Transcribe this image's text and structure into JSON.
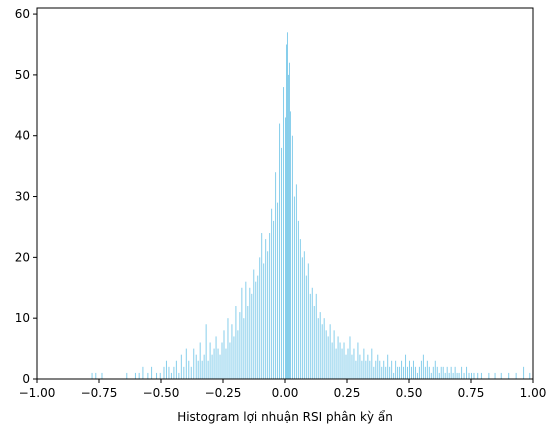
{
  "chart_data": {
    "type": "bar",
    "title": "",
    "xlabel": "Histogram lợi nhuận RSI phân kỳ ẩn",
    "ylabel": "",
    "xlim": [
      -1.0,
      1.0
    ],
    "ylim": [
      0,
      61
    ],
    "grid": false,
    "bar_color": "#87CEEB",
    "x_ticks": [
      "−1.00",
      "−0.75",
      "−0.50",
      "−0.25",
      "0.00",
      "0.25",
      "0.50",
      "0.75",
      "1.00"
    ],
    "x_tick_values": [
      -1.0,
      -0.75,
      -0.5,
      -0.25,
      0.0,
      0.25,
      0.5,
      0.75,
      1.0
    ],
    "y_ticks": [
      "0",
      "10",
      "20",
      "30",
      "40",
      "50",
      "60"
    ],
    "y_tick_values": [
      0,
      10,
      20,
      30,
      40,
      50,
      60
    ],
    "bin_width": 0.004,
    "bins": [
      [
        -0.78,
        1
      ],
      [
        -0.765,
        1
      ],
      [
        -0.74,
        1
      ],
      [
        -0.64,
        1
      ],
      [
        -0.605,
        1
      ],
      [
        -0.59,
        1
      ],
      [
        -0.575,
        2
      ],
      [
        -0.555,
        1
      ],
      [
        -0.54,
        2
      ],
      [
        -0.52,
        1
      ],
      [
        -0.505,
        1
      ],
      [
        -0.49,
        2
      ],
      [
        -0.48,
        3
      ],
      [
        -0.47,
        2
      ],
      [
        -0.46,
        1
      ],
      [
        -0.45,
        2
      ],
      [
        -0.44,
        3
      ],
      [
        -0.43,
        1
      ],
      [
        -0.42,
        4
      ],
      [
        -0.41,
        2
      ],
      [
        -0.4,
        5
      ],
      [
        -0.39,
        3
      ],
      [
        -0.38,
        2
      ],
      [
        -0.37,
        5
      ],
      [
        -0.36,
        4
      ],
      [
        -0.352,
        3
      ],
      [
        -0.344,
        6
      ],
      [
        -0.336,
        3
      ],
      [
        -0.328,
        4
      ],
      [
        -0.32,
        9
      ],
      [
        -0.312,
        3
      ],
      [
        -0.304,
        6
      ],
      [
        -0.296,
        4
      ],
      [
        -0.288,
        5
      ],
      [
        -0.28,
        7
      ],
      [
        -0.272,
        5
      ],
      [
        -0.264,
        4
      ],
      [
        -0.256,
        6
      ],
      [
        -0.248,
        8
      ],
      [
        -0.24,
        5
      ],
      [
        -0.232,
        10
      ],
      [
        -0.224,
        6
      ],
      [
        -0.216,
        9
      ],
      [
        -0.208,
        7
      ],
      [
        -0.2,
        12
      ],
      [
        -0.192,
        8
      ],
      [
        -0.184,
        11
      ],
      [
        -0.176,
        15
      ],
      [
        -0.168,
        10
      ],
      [
        -0.16,
        16
      ],
      [
        -0.152,
        12
      ],
      [
        -0.144,
        15
      ],
      [
        -0.136,
        14
      ],
      [
        -0.128,
        18
      ],
      [
        -0.12,
        16
      ],
      [
        -0.112,
        17
      ],
      [
        -0.104,
        20
      ],
      [
        -0.096,
        24
      ],
      [
        -0.088,
        19
      ],
      [
        -0.08,
        23
      ],
      [
        -0.072,
        21
      ],
      [
        -0.064,
        24
      ],
      [
        -0.056,
        28
      ],
      [
        -0.048,
        26
      ],
      [
        -0.04,
        34
      ],
      [
        -0.032,
        29
      ],
      [
        -0.024,
        42
      ],
      [
        -0.016,
        38
      ],
      [
        -0.008,
        48
      ],
      [
        0.0,
        43
      ],
      [
        0.004,
        55
      ],
      [
        0.008,
        57
      ],
      [
        0.012,
        50
      ],
      [
        0.016,
        52
      ],
      [
        0.02,
        44
      ],
      [
        0.028,
        40
      ],
      [
        0.036,
        30
      ],
      [
        0.044,
        32
      ],
      [
        0.052,
        26
      ],
      [
        0.06,
        23
      ],
      [
        0.068,
        20
      ],
      [
        0.076,
        21
      ],
      [
        0.084,
        17
      ],
      [
        0.092,
        19
      ],
      [
        0.1,
        14
      ],
      [
        0.108,
        15
      ],
      [
        0.116,
        12
      ],
      [
        0.124,
        14
      ],
      [
        0.132,
        10
      ],
      [
        0.14,
        11
      ],
      [
        0.148,
        9
      ],
      [
        0.156,
        10
      ],
      [
        0.164,
        8
      ],
      [
        0.172,
        7
      ],
      [
        0.18,
        9
      ],
      [
        0.188,
        6
      ],
      [
        0.196,
        8
      ],
      [
        0.204,
        5
      ],
      [
        0.212,
        7
      ],
      [
        0.22,
        6
      ],
      [
        0.228,
        5
      ],
      [
        0.236,
        6
      ],
      [
        0.244,
        4
      ],
      [
        0.252,
        5
      ],
      [
        0.26,
        7
      ],
      [
        0.268,
        4
      ],
      [
        0.276,
        5
      ],
      [
        0.284,
        3
      ],
      [
        0.292,
        6
      ],
      [
        0.3,
        4
      ],
      [
        0.308,
        3
      ],
      [
        0.316,
        5
      ],
      [
        0.324,
        3
      ],
      [
        0.332,
        4
      ],
      [
        0.34,
        3
      ],
      [
        0.348,
        5
      ],
      [
        0.356,
        2
      ],
      [
        0.364,
        3
      ],
      [
        0.372,
        4
      ],
      [
        0.38,
        3
      ],
      [
        0.388,
        2
      ],
      [
        0.396,
        3
      ],
      [
        0.404,
        2
      ],
      [
        0.412,
        4
      ],
      [
        0.42,
        2
      ],
      [
        0.428,
        3
      ],
      [
        0.436,
        1
      ],
      [
        0.444,
        3
      ],
      [
        0.452,
        2
      ],
      [
        0.46,
        2
      ],
      [
        0.468,
        3
      ],
      [
        0.476,
        2
      ],
      [
        0.484,
        4
      ],
      [
        0.492,
        2
      ],
      [
        0.5,
        3
      ],
      [
        0.508,
        2
      ],
      [
        0.516,
        3
      ],
      [
        0.524,
        2
      ],
      [
        0.532,
        1
      ],
      [
        0.54,
        2
      ],
      [
        0.548,
        3
      ],
      [
        0.556,
        4
      ],
      [
        0.564,
        2
      ],
      [
        0.572,
        3
      ],
      [
        0.58,
        2
      ],
      [
        0.588,
        1
      ],
      [
        0.596,
        2
      ],
      [
        0.604,
        3
      ],
      [
        0.612,
        2
      ],
      [
        0.62,
        1
      ],
      [
        0.628,
        2
      ],
      [
        0.636,
        2
      ],
      [
        0.644,
        1
      ],
      [
        0.652,
        2
      ],
      [
        0.66,
        1
      ],
      [
        0.668,
        2
      ],
      [
        0.676,
        1
      ],
      [
        0.684,
        2
      ],
      [
        0.692,
        1
      ],
      [
        0.7,
        1
      ],
      [
        0.71,
        2
      ],
      [
        0.72,
        1
      ],
      [
        0.73,
        2
      ],
      [
        0.74,
        1
      ],
      [
        0.75,
        1
      ],
      [
        0.76,
        1
      ],
      [
        0.775,
        1
      ],
      [
        0.79,
        1
      ],
      [
        0.82,
        1
      ],
      [
        0.845,
        1
      ],
      [
        0.87,
        1
      ],
      [
        0.9,
        1
      ],
      [
        0.93,
        1
      ],
      [
        0.96,
        2
      ],
      [
        0.985,
        1
      ]
    ]
  }
}
